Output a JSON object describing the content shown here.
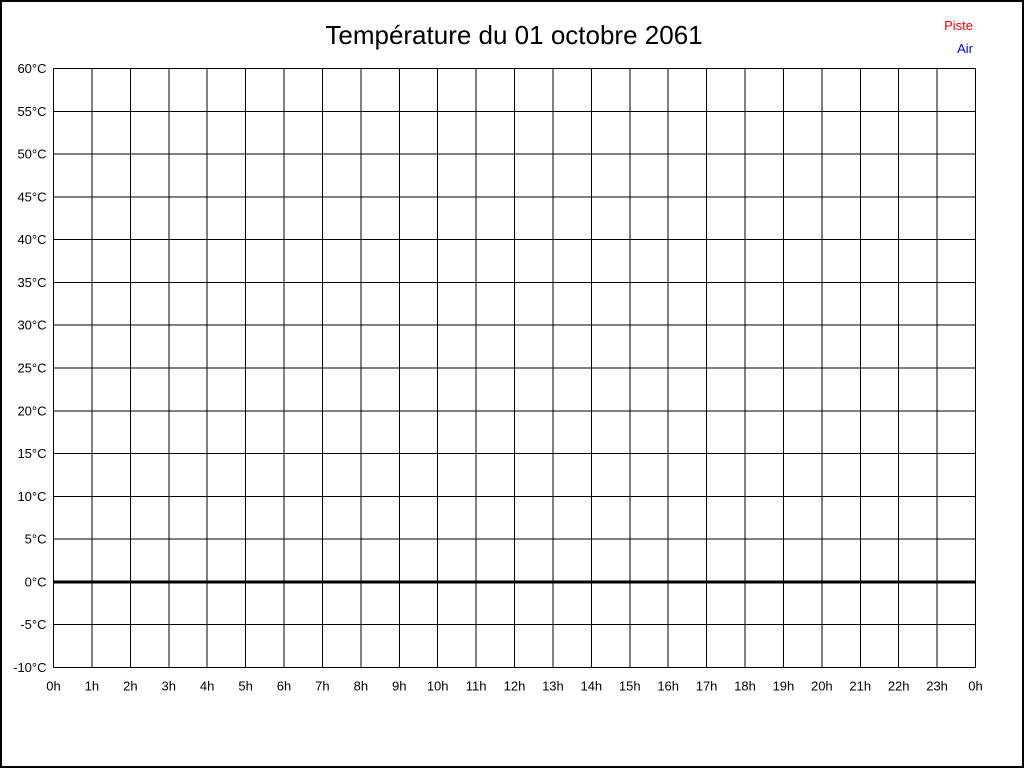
{
  "header": {
    "title": "Température du 01 octobre 2061"
  },
  "legend": {
    "items": [
      {
        "label": "Piste",
        "color": "#ff0000"
      },
      {
        "label": "Air",
        "color": "#0000ff"
      }
    ]
  },
  "chart_data": {
    "type": "line",
    "title": "Température du 01 octobre 2061",
    "xlabel": "",
    "ylabel": "",
    "x_tick_labels": [
      "0h",
      "1h",
      "2h",
      "3h",
      "4h",
      "5h",
      "6h",
      "7h",
      "8h",
      "9h",
      "10h",
      "11h",
      "12h",
      "13h",
      "14h",
      "15h",
      "16h",
      "17h",
      "18h",
      "19h",
      "20h",
      "21h",
      "22h",
      "23h",
      "0h"
    ],
    "y_tick_labels": [
      "60°C",
      "55°C",
      "50°C",
      "45°C",
      "40°C",
      "35°C",
      "30°C",
      "25°C",
      "20°C",
      "15°C",
      "10°C",
      "5°C",
      "0°C",
      "-5°C",
      "-10°C"
    ],
    "ylim": [
      -10,
      60
    ],
    "y_step": 5,
    "x_divisions": 24,
    "grid": true,
    "grid_color": "#000000",
    "zero_line_value": 0,
    "legend_position": "top-right",
    "series": [
      {
        "name": "Piste",
        "color": "#ff0000",
        "values": []
      },
      {
        "name": "Air",
        "color": "#0000ff",
        "values": []
      }
    ]
  }
}
